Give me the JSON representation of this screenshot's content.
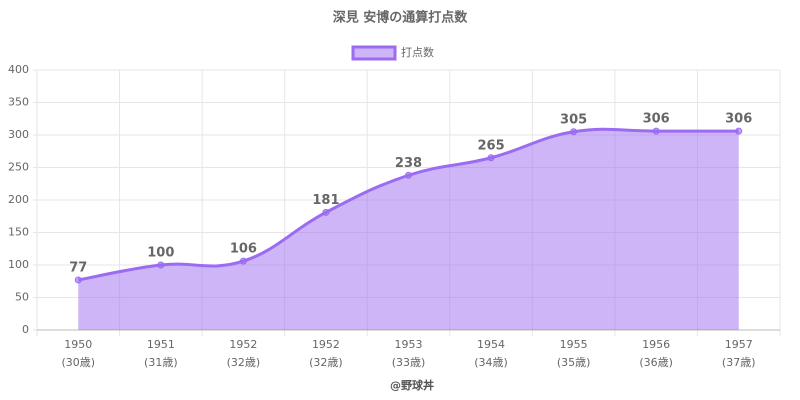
{
  "chart_data": {
    "type": "line",
    "title": "深見 安博の通算打点数",
    "categories": [
      [
        "1950",
        "(30歳)"
      ],
      [
        "1951",
        "(31歳)"
      ],
      [
        "1952",
        "(32歳)"
      ],
      [
        "1952",
        "(32歳)"
      ],
      [
        "1953",
        "(33歳)"
      ],
      [
        "1954",
        "(34歳)"
      ],
      [
        "1955",
        "(35歳)"
      ],
      [
        "1956",
        "(36歳)"
      ],
      [
        "1957",
        "(37歳)"
      ]
    ],
    "series": [
      {
        "name": "打点数",
        "color": "#9b6bf2",
        "values": [
          77,
          100,
          106,
          181,
          238,
          265,
          305,
          306,
          306
        ]
      }
    ],
    "ylim": [
      0,
      400
    ],
    "yticks": [
      0,
      50,
      100,
      150,
      200,
      250,
      300,
      350,
      400
    ],
    "grid": true,
    "fill": true,
    "footer": "@野球丼"
  }
}
